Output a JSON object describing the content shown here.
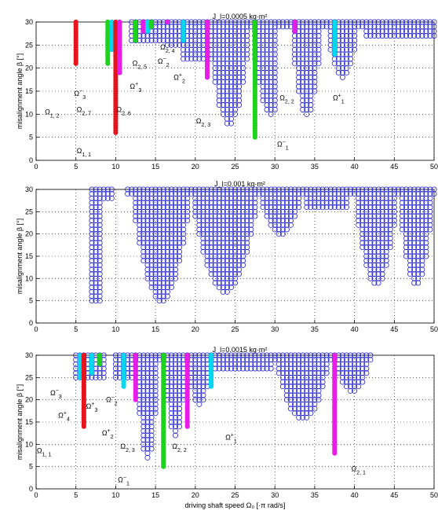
{
  "chart_data": [
    {
      "type": "scatter",
      "title": "J_l=0.0005 kg·m²",
      "xlabel": "",
      "ylabel": "misalignment angle β [°]",
      "xlim": [
        0,
        50
      ],
      "ylim": [
        0,
        30
      ],
      "xticks": [
        "0",
        "5",
        "10",
        "15",
        "20",
        "25",
        "30",
        "35",
        "40",
        "45",
        "50"
      ],
      "yticks": [
        "0",
        "5",
        "10",
        "15",
        "20",
        "25",
        "30"
      ],
      "grid": true,
      "colors": {
        "blue": "#1f1fd6",
        "red": "#e6141e",
        "green": "#1ed21e",
        "cyan": "#00d7f0",
        "magenta": "#e61ee6"
      },
      "blue_columns": [
        {
          "x": [
            12.0,
            16.0
          ],
          "min": 26
        },
        {
          "x": [
            16.5,
            18.0
          ],
          "min": 25
        },
        {
          "x": [
            18.5,
            21.0
          ],
          "min": 22
        },
        {
          "x": [
            21.5,
            27.0
          ],
          "min": 8,
          "v": [
            21.5,
            27.0
          ]
        },
        {
          "x": [
            27.5,
            30.0
          ],
          "min": 10,
          "v": [
            27.0,
            32.0
          ]
        },
        {
          "x": [
            30.5,
            35.5
          ],
          "min": 10,
          "v": [
            32.0,
            36.0
          ]
        },
        {
          "x": [
            36.0,
            41.0
          ],
          "min": 18,
          "v": [
            36.5,
            40.5
          ]
        },
        {
          "x": [
            41.5,
            50.0
          ],
          "min": 27
        }
      ],
      "colored_columns": [
        {
          "x": 5.0,
          "min": 21,
          "color": "red"
        },
        {
          "x": 9.0,
          "min": 21,
          "color": "green"
        },
        {
          "x": 9.5,
          "min": 24,
          "color": "cyan"
        },
        {
          "x": 10.0,
          "min": 6,
          "color": "red"
        },
        {
          "x": 10.5,
          "min": 19,
          "color": "magenta"
        },
        {
          "x": 12.5,
          "min": 26,
          "color": "green"
        },
        {
          "x": 13.5,
          "min": 28,
          "color": "magenta"
        },
        {
          "x": 14.0,
          "min": 28,
          "color": "cyan"
        },
        {
          "x": 14.5,
          "min": 29,
          "color": "green"
        },
        {
          "x": 16.5,
          "min": 30,
          "color": "magenta"
        },
        {
          "x": 18.5,
          "min": 26,
          "color": "cyan"
        },
        {
          "x": 21.5,
          "min": 18,
          "color": "magenta"
        },
        {
          "x": 27.5,
          "min": 5,
          "color": "green"
        },
        {
          "x": 32.5,
          "min": 28,
          "color": "magenta"
        },
        {
          "x": 37.5,
          "min": 23,
          "color": "cyan"
        }
      ],
      "annotations": [
        {
          "text": "Ω",
          "sub": "1, 2",
          "x": 2.0,
          "y": 10.0
        },
        {
          "text": "Ω",
          "sup": "−",
          "sub": "3",
          "x": 5.5,
          "y": 14.0
        },
        {
          "text": "Ω",
          "sub": "2, 7",
          "x": 6.0,
          "y": 10.5
        },
        {
          "text": "Ω",
          "sub": "1, 1",
          "x": 6.0,
          "y": 1.5
        },
        {
          "text": "Ω",
          "sub": "2, 6",
          "x": 11.0,
          "y": 10.5
        },
        {
          "text": "Ω",
          "sup": "+",
          "sub": "3",
          "x": 12.5,
          "y": 15.5
        },
        {
          "text": "Ω",
          "sub": "2, 5",
          "x": 13.0,
          "y": 20.5
        },
        {
          "text": "Ω",
          "sup": "−",
          "sub": "2",
          "x": 16.0,
          "y": 21.0
        },
        {
          "text": "Ω",
          "sub": "2, 4",
          "x": 16.5,
          "y": 24.0
        },
        {
          "text": "Ω",
          "sup": "+",
          "sub": "2",
          "x": 18.0,
          "y": 17.5
        },
        {
          "text": "Ω",
          "sub": "2, 3",
          "x": 21.0,
          "y": 8.0
        },
        {
          "text": "Ω",
          "sup": "−",
          "sub": "1",
          "x": 31.0,
          "y": 3.0
        },
        {
          "text": "Ω",
          "sub": "2, 2",
          "x": 31.5,
          "y": 13.0
        },
        {
          "text": "Ω",
          "sup": "+",
          "sub": "1",
          "x": 38.0,
          "y": 13.0
        }
      ]
    },
    {
      "type": "scatter",
      "title": "J_l=0.001 kg·m²",
      "xlabel": "",
      "ylabel": "misalignment angle β [°]",
      "xlim": [
        0,
        50
      ],
      "ylim": [
        0,
        30
      ],
      "xticks": [
        "0",
        "5",
        "10",
        "15",
        "20",
        "25",
        "30",
        "35",
        "40",
        "45",
        "50"
      ],
      "yticks": [
        "0",
        "5",
        "10",
        "15",
        "20",
        "25",
        "30"
      ],
      "grid": true,
      "blue_columns": [
        {
          "x": [
            7.0,
            8.0
          ],
          "min": 5
        },
        {
          "x": [
            8.5,
            9.5
          ],
          "min": 28
        },
        {
          "x": [
            11.5,
            19.5
          ],
          "min": 5,
          "v": [
            12.0,
            19.5
          ]
        },
        {
          "x": [
            20.0,
            28.0
          ],
          "min": 7,
          "v": [
            19.5,
            28.0
          ]
        },
        {
          "x": [
            28.5,
            33.5
          ],
          "min": 20,
          "v": [
            28.0,
            33.5
          ]
        },
        {
          "x": [
            34.0,
            39.0
          ],
          "min": 26
        },
        {
          "x": [
            39.5,
            45.5
          ],
          "min": 9,
          "v": [
            40.0,
            45.5
          ]
        },
        {
          "x": [
            46.0,
            50.0
          ],
          "min": 9,
          "v": [
            45.5,
            50.0
          ]
        }
      ],
      "colored_columns": []
    },
    {
      "type": "scatter",
      "title": "J_l=0.0015 kg·m²",
      "xlabel": "driving shaft speed Ω₀ [·π rad/s]",
      "ylabel": "misalignment angle β [°]",
      "xlim": [
        0,
        50
      ],
      "ylim": [
        0,
        30
      ],
      "xticks": [
        "0",
        "5",
        "10",
        "15",
        "20",
        "25",
        "30",
        "35",
        "40",
        "45",
        "50"
      ],
      "yticks": [
        "0",
        "5",
        "10",
        "15",
        "20",
        "25",
        "30"
      ],
      "grid": true,
      "blue_columns": [
        {
          "x": [
            5.0,
            8.5
          ],
          "min": 25
        },
        {
          "x": [
            10.0,
            12.0
          ],
          "min": 25
        },
        {
          "x": [
            12.5,
            15.5
          ],
          "min": 7,
          "v": [
            12.5,
            15.5
          ]
        },
        {
          "x": [
            16.0,
            19.0
          ],
          "min": 12,
          "v": [
            16.0,
            19.0
          ]
        },
        {
          "x": [
            19.5,
            22.0
          ],
          "min": 19,
          "v": [
            19.0,
            22.0
          ]
        },
        {
          "x": [
            22.5,
            29.5
          ],
          "min": 27
        },
        {
          "x": [
            30.0,
            37.0
          ],
          "min": 16,
          "v": [
            30.0,
            37.0
          ]
        },
        {
          "x": [
            37.5,
            42.0
          ],
          "min": 22,
          "v": [
            37.5,
            42.0
          ]
        }
      ],
      "colored_columns": [
        {
          "x": 5.5,
          "min": 25,
          "color": "cyan"
        },
        {
          "x": 6.0,
          "min": 14,
          "color": "red"
        },
        {
          "x": 7.0,
          "min": 26,
          "color": "cyan"
        },
        {
          "x": 8.0,
          "min": 28,
          "color": "green"
        },
        {
          "x": 11.0,
          "min": 23,
          "color": "cyan"
        },
        {
          "x": 12.5,
          "min": 20,
          "color": "magenta"
        },
        {
          "x": 16.0,
          "min": 5,
          "color": "green"
        },
        {
          "x": 19.0,
          "min": 14,
          "color": "magenta"
        },
        {
          "x": 22.0,
          "min": 23,
          "color": "cyan"
        },
        {
          "x": 37.5,
          "min": 8,
          "color": "magenta"
        }
      ],
      "annotations": [
        {
          "text": "Ω",
          "sup": "−",
          "sub": "3",
          "x": 2.5,
          "y": 21.0
        },
        {
          "text": "Ω",
          "sup": "+",
          "sub": "4",
          "x": 3.5,
          "y": 16.0
        },
        {
          "text": "Ω",
          "sup": "+",
          "sub": "3",
          "x": 7.0,
          "y": 18.0
        },
        {
          "text": "Ω",
          "sup": "−",
          "sub": "2",
          "x": 9.5,
          "y": 19.5
        },
        {
          "text": "Ω",
          "sup": "+",
          "sub": "2",
          "x": 9.0,
          "y": 12.0
        },
        {
          "text": "Ω",
          "sub": "1, 1",
          "x": 1.0,
          "y": 8.0
        },
        {
          "text": "Ω",
          "sub": "2, 3",
          "x": 11.5,
          "y": 9.0
        },
        {
          "text": "Ω",
          "sub": "2, 2",
          "x": 18.0,
          "y": 9.0
        },
        {
          "text": "Ω",
          "sup": "+",
          "sub": "1",
          "x": 24.5,
          "y": 11.0
        },
        {
          "text": "Ω",
          "sup": "−",
          "sub": "1",
          "x": 11.0,
          "y": 1.5
        },
        {
          "text": "Ω",
          "sub": "2, 1",
          "x": 40.5,
          "y": 4.0
        }
      ]
    }
  ]
}
